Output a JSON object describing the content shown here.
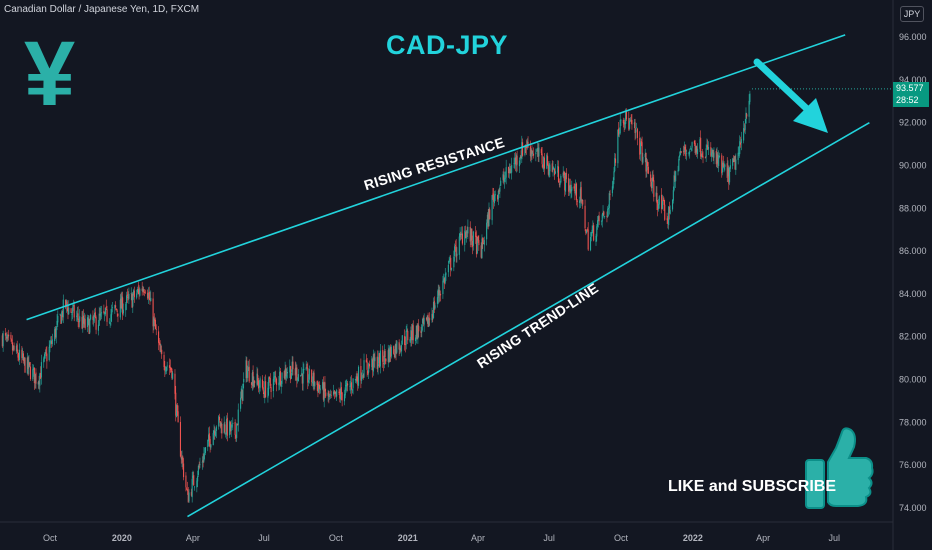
{
  "header": {
    "symbol_label": "Canadian Dollar / Japanese Yen, 1D, FXCM",
    "currency_button": "JPY"
  },
  "overlay": {
    "title": "CAD-JPY",
    "yen_symbol": "¥",
    "resistance_label": "RISING RESISTANCE",
    "trendline_label": "RISING TREND-LINE",
    "cta": "LIKE and SUBSCRIBE"
  },
  "price_tag": {
    "price": "93.577",
    "countdown": "28:52",
    "color": "#089981"
  },
  "colors": {
    "background": "#131722",
    "up": "#26a69a",
    "down": "#ef5350",
    "trendline": "#22d3dc",
    "arrow": "#22d3dc",
    "icon": "#2bb0a8"
  },
  "chart_data": {
    "type": "candlestick",
    "series_name": "",
    "ylim": [
      73.5,
      97
    ],
    "y_ticks": [
      "74.000",
      "76.000",
      "78.000",
      "80.000",
      "82.000",
      "84.000",
      "86.000",
      "88.000",
      "90.000",
      "92.000",
      "94.000",
      "96.000"
    ],
    "x_ticks": [
      {
        "label": "Oct",
        "bold": false
      },
      {
        "label": "2020",
        "bold": true
      },
      {
        "label": "Apr",
        "bold": false
      },
      {
        "label": "Jul",
        "bold": false
      },
      {
        "label": "Oct",
        "bold": false
      },
      {
        "label": "2021",
        "bold": true
      },
      {
        "label": "Apr",
        "bold": false
      },
      {
        "label": "Jul",
        "bold": false
      },
      {
        "label": "Oct",
        "bold": false
      },
      {
        "label": "2022",
        "bold": true
      },
      {
        "label": "Apr",
        "bold": false
      },
      {
        "label": "Jul",
        "bold": false
      }
    ],
    "tick_dates": [
      "2019-10-01",
      "2020-01-01",
      "2020-04-01",
      "2020-07-01",
      "2020-10-01",
      "2021-01-01",
      "2021-04-01",
      "2021-07-01",
      "2021-10-01",
      "2022-01-01",
      "2022-04-01",
      "2022-07-01"
    ],
    "path_dates": [
      "2019-08-01",
      "2019-09-15",
      "2019-10-01",
      "2019-10-20",
      "2019-11-15",
      "2019-12-15",
      "2020-01-15",
      "2020-02-01",
      "2020-02-20",
      "2020-03-05",
      "2020-03-15",
      "2020-03-25",
      "2020-04-10",
      "2020-05-01",
      "2020-05-25",
      "2020-06-08",
      "2020-07-01",
      "2020-08-01",
      "2020-09-01",
      "2020-09-25",
      "2020-10-15",
      "2020-11-05",
      "2020-12-01",
      "2020-12-31",
      "2021-01-25",
      "2021-02-20",
      "2021-03-15",
      "2021-04-05",
      "2021-04-20",
      "2021-05-15",
      "2021-06-01",
      "2021-06-15",
      "2021-07-15",
      "2021-08-10",
      "2021-08-20",
      "2021-09-15",
      "2021-10-01",
      "2021-10-20",
      "2021-11-15",
      "2021-11-30",
      "2021-12-15",
      "2022-01-05",
      "2022-01-25",
      "2022-02-15",
      "2022-03-01",
      "2022-03-15"
    ],
    "path_values": [
      82.0,
      80.0,
      81.5,
      83.5,
      82.5,
      83.0,
      83.8,
      84.5,
      81.0,
      80.5,
      77.0,
      74.5,
      76.0,
      78.0,
      77.5,
      80.5,
      79.5,
      80.5,
      80.0,
      79.0,
      79.5,
      80.5,
      81.0,
      82.0,
      82.5,
      85.0,
      87.0,
      86.0,
      88.5,
      90.0,
      91.0,
      90.5,
      89.5,
      88.5,
      86.5,
      88.0,
      92.5,
      91.5,
      88.5,
      87.5,
      90.5,
      91.0,
      90.5,
      89.5,
      90.5,
      93.5
    ],
    "resistance_line": {
      "from_date": "2019-09-01",
      "from_value": 82.8,
      "to_date": "2022-07-15",
      "to_value": 96.1
    },
    "trend_line": {
      "from_date": "2020-03-25",
      "from_value": 73.6,
      "to_date": "2022-08-15",
      "to_value": 92.0
    },
    "last_price": 93.577
  }
}
